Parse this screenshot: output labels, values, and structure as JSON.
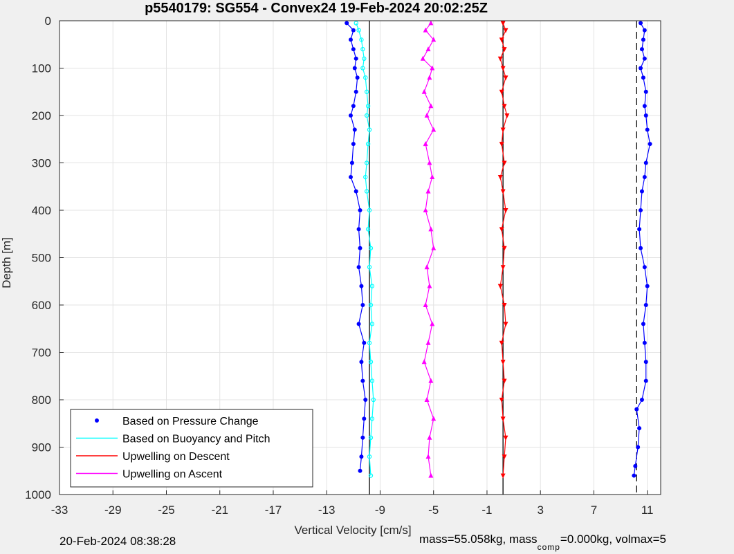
{
  "chart_data": {
    "type": "line",
    "title": "p5540179: SG554 - Convex24 19-Feb-2024 20:02:25Z",
    "xlabel": "Vertical Velocity [cm/s]",
    "ylabel": "Depth [m]",
    "xlim": [
      -33,
      12
    ],
    "ylim": [
      1000,
      0
    ],
    "y_reversed": true,
    "xticks": [
      -33,
      -29,
      -25,
      -21,
      -17,
      -13,
      -9,
      -5,
      -1,
      3,
      7,
      11
    ],
    "yticks": [
      0,
      100,
      200,
      300,
      400,
      500,
      600,
      700,
      800,
      900,
      1000
    ],
    "grid": true,
    "legend_position": "bottom-left",
    "reference_lines": [
      {
        "style": "solid",
        "x": -9.8
      },
      {
        "style": "solid",
        "x": 0.2
      },
      {
        "style": "dashed",
        "x": 10.2
      }
    ],
    "series": [
      {
        "name": "Based on Pressure Change",
        "color": "#0000ff",
        "marker": "dot",
        "descent": {
          "depth": [
            5,
            20,
            40,
            60,
            80,
            100,
            120,
            150,
            180,
            200,
            230,
            260,
            300,
            330,
            360,
            400,
            440,
            480,
            520,
            560,
            600,
            640,
            680,
            720,
            760,
            800,
            840,
            880,
            920,
            950
          ],
          "velocity": [
            -11.5,
            -11.0,
            -11.2,
            -11.0,
            -10.8,
            -10.9,
            -10.7,
            -10.8,
            -11.0,
            -11.2,
            -10.9,
            -11.0,
            -11.1,
            -11.2,
            -10.8,
            -10.5,
            -10.6,
            -10.5,
            -10.6,
            -10.4,
            -10.3,
            -10.6,
            -10.2,
            -10.4,
            -10.3,
            -10.1,
            -10.2,
            -10.3,
            -10.4,
            -10.5
          ]
        },
        "ascent": {
          "depth": [
            960,
            940,
            900,
            860,
            820,
            800,
            760,
            720,
            680,
            640,
            600,
            560,
            520,
            480,
            440,
            400,
            360,
            330,
            300,
            260,
            230,
            200,
            180,
            150,
            120,
            100,
            80,
            60,
            40,
            20,
            5
          ],
          "velocity": [
            10.0,
            10.1,
            10.3,
            10.4,
            10.2,
            10.6,
            10.9,
            10.9,
            10.8,
            10.7,
            10.9,
            11.0,
            10.8,
            10.5,
            10.4,
            10.5,
            10.6,
            10.8,
            10.9,
            11.2,
            11.0,
            10.9,
            10.8,
            10.9,
            10.7,
            10.5,
            10.8,
            10.6,
            10.7,
            10.8,
            10.5
          ]
        }
      },
      {
        "name": "Based on Buoyancy and Pitch",
        "color": "#00ffff",
        "marker": "circle",
        "descent": {
          "depth": [
            5,
            20,
            40,
            60,
            80,
            100,
            120,
            150,
            180,
            200,
            230,
            260,
            300,
            330,
            360,
            400,
            440,
            480,
            520,
            560,
            600,
            640,
            680,
            720,
            760,
            800,
            840,
            880,
            920,
            960
          ],
          "velocity": [
            -10.8,
            -10.6,
            -10.4,
            -10.3,
            -10.2,
            -10.3,
            -10.1,
            -10.0,
            -9.9,
            -10.0,
            -9.8,
            -9.9,
            -10.0,
            -10.1,
            -10.0,
            -9.8,
            -9.9,
            -9.7,
            -9.8,
            -9.6,
            -9.7,
            -9.6,
            -9.8,
            -9.7,
            -9.6,
            -9.5,
            -9.6,
            -9.7,
            -9.8,
            -9.7
          ]
        }
      },
      {
        "name": "Upwelling on Descent",
        "color": "#ff0000",
        "marker": "triangle-down",
        "depth": [
          5,
          20,
          40,
          60,
          80,
          100,
          120,
          150,
          180,
          200,
          230,
          260,
          300,
          330,
          360,
          400,
          440,
          480,
          520,
          560,
          600,
          640,
          680,
          720,
          760,
          800,
          840,
          880,
          920,
          960
        ],
        "velocity": [
          0.2,
          0.4,
          0.1,
          0.3,
          0.0,
          0.2,
          0.4,
          0.1,
          0.3,
          0.5,
          0.2,
          0.1,
          0.3,
          0.0,
          0.2,
          0.4,
          0.1,
          0.3,
          0.2,
          0.0,
          0.3,
          0.4,
          0.1,
          0.2,
          0.3,
          0.1,
          0.2,
          0.4,
          0.3,
          0.2
        ]
      },
      {
        "name": "Upwelling on Ascent",
        "color": "#ff00ff",
        "marker": "triangle-up",
        "depth": [
          5,
          20,
          40,
          60,
          80,
          100,
          120,
          150,
          180,
          200,
          230,
          260,
          300,
          330,
          360,
          400,
          440,
          480,
          520,
          560,
          600,
          640,
          680,
          720,
          760,
          800,
          840,
          880,
          920,
          960
        ],
        "velocity": [
          -5.2,
          -5.6,
          -5.0,
          -5.4,
          -5.8,
          -5.1,
          -5.3,
          -5.7,
          -5.2,
          -5.5,
          -5.0,
          -5.6,
          -5.3,
          -5.1,
          -5.4,
          -5.6,
          -5.2,
          -5.0,
          -5.5,
          -5.3,
          -5.6,
          -5.1,
          -5.4,
          -5.7,
          -5.2,
          -5.5,
          -5.0,
          -5.3,
          -5.4,
          -5.2
        ]
      }
    ]
  },
  "footer": {
    "date": "20-Feb-2024 08:38:28",
    "mass_prefix": "mass=55.058kg, mass",
    "mass_sub": "comp",
    "mass_suffix": "=0.000kg, volmax=5"
  }
}
